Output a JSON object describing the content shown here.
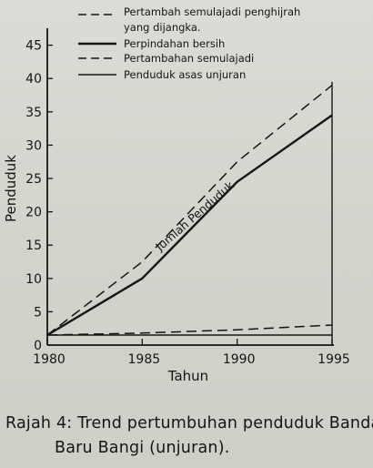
{
  "chart_data": {
    "type": "line",
    "title": "",
    "xlabel": "Tahun",
    "ylabel": "Penduduk",
    "x": [
      1980,
      1985,
      1990,
      1995
    ],
    "xlim": [
      1980,
      1995
    ],
    "ylim": [
      0,
      47
    ],
    "x_ticks": [
      "1980",
      "1985",
      "1990",
      "1995"
    ],
    "y_ticks": [
      "0",
      "5",
      "10",
      "15",
      "20",
      "25",
      "30",
      "35",
      "40",
      "45"
    ],
    "grid": false,
    "legend_position": "top",
    "series": [
      {
        "name": "Pertambah semulajadi penghijrah yang dijangka.",
        "legend_lines": [
          "Pertambah semulajadi penghijrah",
          "yang dijangka."
        ],
        "style": "dashed",
        "values": [
          1.5,
          12.5,
          27.5,
          39.0
        ]
      },
      {
        "name": "Perpindahan bersih",
        "legend_lines": [
          "Perpindahan bersih"
        ],
        "style": "solid-thick",
        "values": [
          1.5,
          10.0,
          24.5,
          34.5
        ]
      },
      {
        "name": "Pertambahan semulajadi",
        "legend_lines": [
          "Pertambahan semulajadi"
        ],
        "style": "dashed",
        "values": [
          1.5,
          1.8,
          2.3,
          3.0
        ]
      },
      {
        "name": "Penduduk asas unjuran",
        "legend_lines": [
          "Penduduk asas unjuran"
        ],
        "style": "solid",
        "values": [
          1.5,
          1.5,
          1.5,
          1.5
        ]
      }
    ],
    "annotation": "Jumlah Penduduk"
  },
  "caption": {
    "line1": "Rajah 4: Trend pertumbuhan penduduk Bandar",
    "line2": "Baru Bangi (unjuran)."
  }
}
